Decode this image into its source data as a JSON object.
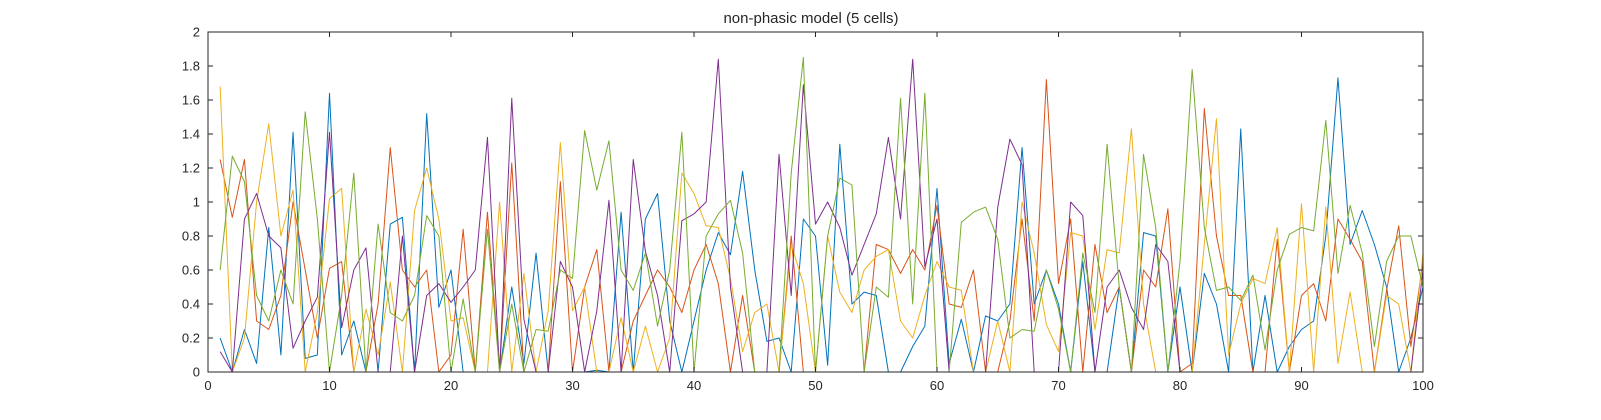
{
  "chart_data": {
    "type": "line",
    "title": "non-phasic model (5 cells)",
    "xlabel": "",
    "ylabel": "",
    "xlim": [
      0,
      100
    ],
    "ylim": [
      0,
      2
    ],
    "x_ticks": [
      0,
      10,
      20,
      30,
      40,
      50,
      60,
      70,
      80,
      90,
      100
    ],
    "y_ticks": [
      0,
      0.2,
      0.4,
      0.6,
      0.8,
      1,
      1.2,
      1.4,
      1.6,
      1.8,
      2
    ],
    "x_tick_labels": [
      "0",
      "10",
      "20",
      "30",
      "40",
      "50",
      "60",
      "70",
      "80",
      "90",
      "100"
    ],
    "y_tick_labels": [
      "0",
      "0.2",
      "0.4",
      "0.6",
      "0.8",
      "1",
      "1.2",
      "1.4",
      "1.6",
      "1.8",
      "2"
    ],
    "grid": false,
    "box": true,
    "x": [
      1,
      2,
      3,
      4,
      5,
      6,
      7,
      8,
      9,
      10,
      11,
      12,
      13,
      14,
      15,
      16,
      17,
      18,
      19,
      20,
      21,
      22,
      23,
      24,
      25,
      26,
      27,
      28,
      29,
      30,
      31,
      32,
      33,
      34,
      35,
      36,
      37,
      38,
      39,
      40,
      41,
      42,
      43,
      44,
      45,
      46,
      47,
      48,
      49,
      50,
      51,
      52,
      53,
      54,
      55,
      56,
      57,
      58,
      59,
      60,
      61,
      62,
      63,
      64,
      65,
      66,
      67,
      68,
      69,
      70,
      71,
      72,
      73,
      74,
      75,
      76,
      77,
      78,
      79,
      80,
      81,
      82,
      83,
      84,
      85,
      86,
      87,
      88,
      89,
      90,
      91,
      92,
      93,
      94,
      95,
      96,
      97,
      98,
      99,
      100
    ],
    "series": [
      {
        "color": "#0072BD",
        "values": [
          0.2,
          0.0,
          0.25,
          0.05,
          0.85,
          0.1,
          1.41,
          0.08,
          0.1,
          1.64,
          0.1,
          0.3,
          0.0,
          0.0,
          0.87,
          0.91,
          0.0,
          1.52,
          0.38,
          0.6,
          0.0,
          0.0,
          0.0,
          0.0,
          0.5,
          0.05,
          0.7,
          0.0,
          0.0,
          0.0,
          0.0,
          0.01,
          0.0,
          0.94,
          0.0,
          0.9,
          1.05,
          0.3,
          0.0,
          0.3,
          0.6,
          0.82,
          0.69,
          1.18,
          0.6,
          0.18,
          0.2,
          0.0,
          0.9,
          0.8,
          0.04,
          1.34,
          0.4,
          0.47,
          0.45,
          0.0,
          0.0,
          0.15,
          0.27,
          1.08,
          0.05,
          0.31,
          0.0,
          0.33,
          0.3,
          0.4,
          1.32,
          0.4,
          0.6,
          0.4,
          0.0,
          0.65,
          0.0,
          0.0,
          0.5,
          0.0,
          0.82,
          0.8,
          0.0,
          0.5,
          0.0,
          0.58,
          0.4,
          0.0,
          1.43,
          0.0,
          0.45,
          0.0,
          0.15,
          0.25,
          0.3,
          0.8,
          1.73,
          0.75,
          0.95,
          0.75,
          0.5,
          0.0,
          0.2,
          0.5
        ]
      },
      {
        "color": "#D95319",
        "values": [
          1.25,
          0.91,
          1.25,
          0.3,
          0.25,
          0.45,
          1.0,
          0.6,
          0.2,
          0.61,
          0.65,
          0.0,
          0.0,
          0.4,
          1.32,
          0.6,
          0.5,
          0.6,
          0.0,
          0.1,
          0.84,
          0.0,
          0.94,
          0.0,
          1.23,
          0.0,
          0.0,
          0.0,
          1.12,
          0.0,
          0.5,
          0.72,
          0.0,
          0.0,
          0.3,
          0.45,
          0.6,
          0.5,
          0.35,
          0.6,
          0.75,
          0.52,
          0.0,
          0.45,
          0.0,
          0.0,
          0.0,
          0.8,
          0.0,
          0.0,
          0.0,
          0.0,
          0.0,
          0.0,
          0.75,
          0.72,
          0.58,
          0.72,
          0.6,
          0.98,
          0.4,
          0.38,
          0.6,
          0.0,
          0.0,
          0.3,
          0.9,
          0.3,
          1.72,
          0.52,
          0.9,
          0.0,
          0.75,
          0.35,
          0.5,
          0.0,
          0.6,
          0.5,
          0.96,
          0.0,
          0.05,
          1.55,
          0.8,
          0.45,
          0.45,
          0.0,
          0.0,
          0.78,
          0.0,
          0.45,
          0.52,
          0.3,
          0.9,
          0.78,
          0.65,
          0.0,
          0.48,
          0.86,
          0.15,
          0.65
        ]
      },
      {
        "color": "#EDB120",
        "values": [
          1.68,
          0.0,
          0.2,
          1.0,
          1.46,
          0.8,
          1.07,
          0.0,
          0.35,
          1.02,
          1.08,
          0.0,
          0.37,
          0.1,
          0.53,
          0.0,
          0.95,
          1.2,
          0.9,
          0.3,
          0.32,
          0.0,
          0.0,
          1.0,
          0.0,
          0.58,
          0.0,
          0.36,
          1.35,
          0.36,
          0.5,
          0.0,
          0.0,
          0.32,
          0.0,
          0.27,
          0.0,
          0.2,
          1.17,
          1.05,
          0.86,
          0.85,
          0.55,
          0.12,
          0.35,
          0.4,
          0.0,
          0.75,
          0.52,
          0.0,
          0.8,
          0.47,
          0.35,
          0.6,
          0.68,
          0.72,
          0.3,
          0.2,
          0.45,
          0.65,
          0.5,
          0.48,
          0.0,
          0.0,
          0.3,
          0.0,
          1.0,
          0.7,
          0.28,
          0.12,
          0.82,
          0.8,
          0.25,
          0.72,
          0.7,
          1.43,
          0.4,
          0.0,
          0.0,
          0.0,
          0.0,
          0.75,
          1.49,
          0.1,
          0.4,
          0.55,
          0.52,
          0.85,
          0.0,
          0.99,
          0.0,
          0.97,
          0.05,
          0.47,
          0.0,
          0.0,
          0.45,
          0.4,
          0.0,
          0.7
        ]
      },
      {
        "color": "#7E2F8E",
        "values": [
          0.12,
          0.0,
          0.9,
          1.05,
          0.8,
          0.73,
          0.14,
          0.3,
          0.44,
          1.41,
          0.26,
          0.6,
          0.73,
          0.0,
          0.0,
          0.8,
          0.0,
          0.45,
          0.52,
          0.41,
          0.5,
          0.6,
          1.38,
          0.0,
          1.61,
          0.31,
          0.0,
          0.0,
          0.65,
          0.5,
          0.0,
          0.36,
          1.01,
          0.0,
          1.25,
          0.71,
          0.45,
          0.0,
          0.89,
          0.93,
          1.0,
          1.84,
          0.5,
          0.0,
          0.0,
          0.0,
          1.28,
          0.45,
          1.69,
          0.87,
          1.0,
          0.85,
          0.57,
          0.75,
          0.93,
          1.38,
          0.9,
          1.84,
          0.62,
          0.9,
          0.0,
          0.0,
          0.0,
          0.0,
          0.97,
          1.37,
          1.22,
          0.0,
          0.0,
          0.0,
          1.0,
          0.92,
          0.0,
          0.5,
          0.6,
          0.38,
          0.25,
          0.75,
          0.65,
          0.0,
          0.0,
          0.0,
          0.0,
          0.0,
          0.0,
          0.0,
          0.0,
          0.0,
          0.0,
          0.0,
          0.0,
          0.0,
          0.0,
          0.0,
          0.0,
          0.0,
          0.0,
          0.0,
          0.0,
          0.6
        ]
      },
      {
        "color": "#77AC30",
        "values": [
          0.6,
          1.27,
          1.12,
          0.45,
          0.3,
          0.6,
          0.4,
          1.53,
          0.9,
          0.0,
          0.45,
          1.17,
          0.0,
          0.87,
          0.35,
          0.3,
          0.45,
          0.92,
          0.8,
          0.0,
          0.43,
          0.0,
          0.84,
          0.0,
          0.4,
          0.0,
          0.25,
          0.24,
          0.6,
          0.55,
          1.42,
          1.07,
          1.36,
          0.6,
          0.48,
          0.7,
          0.27,
          0.6,
          1.41,
          0.0,
          0.8,
          0.93,
          1.01,
          0.7,
          0.0,
          0.0,
          0.0,
          1.17,
          1.85,
          0.0,
          0.8,
          1.14,
          1.1,
          0.0,
          0.5,
          0.44,
          1.61,
          0.4,
          1.64,
          0.0,
          0.0,
          0.88,
          0.94,
          0.97,
          0.78,
          0.2,
          0.25,
          0.24,
          0.6,
          0.37,
          0.0,
          0.7,
          0.35,
          1.34,
          0.5,
          0.0,
          1.28,
          0.85,
          0.0,
          0.65,
          1.78,
          0.85,
          0.48,
          0.5,
          0.42,
          0.57,
          0.13,
          0.6,
          0.81,
          0.85,
          0.83,
          1.48,
          0.58,
          0.98,
          0.7,
          0.15,
          0.65,
          0.8,
          0.8,
          0.5
        ]
      }
    ]
  }
}
